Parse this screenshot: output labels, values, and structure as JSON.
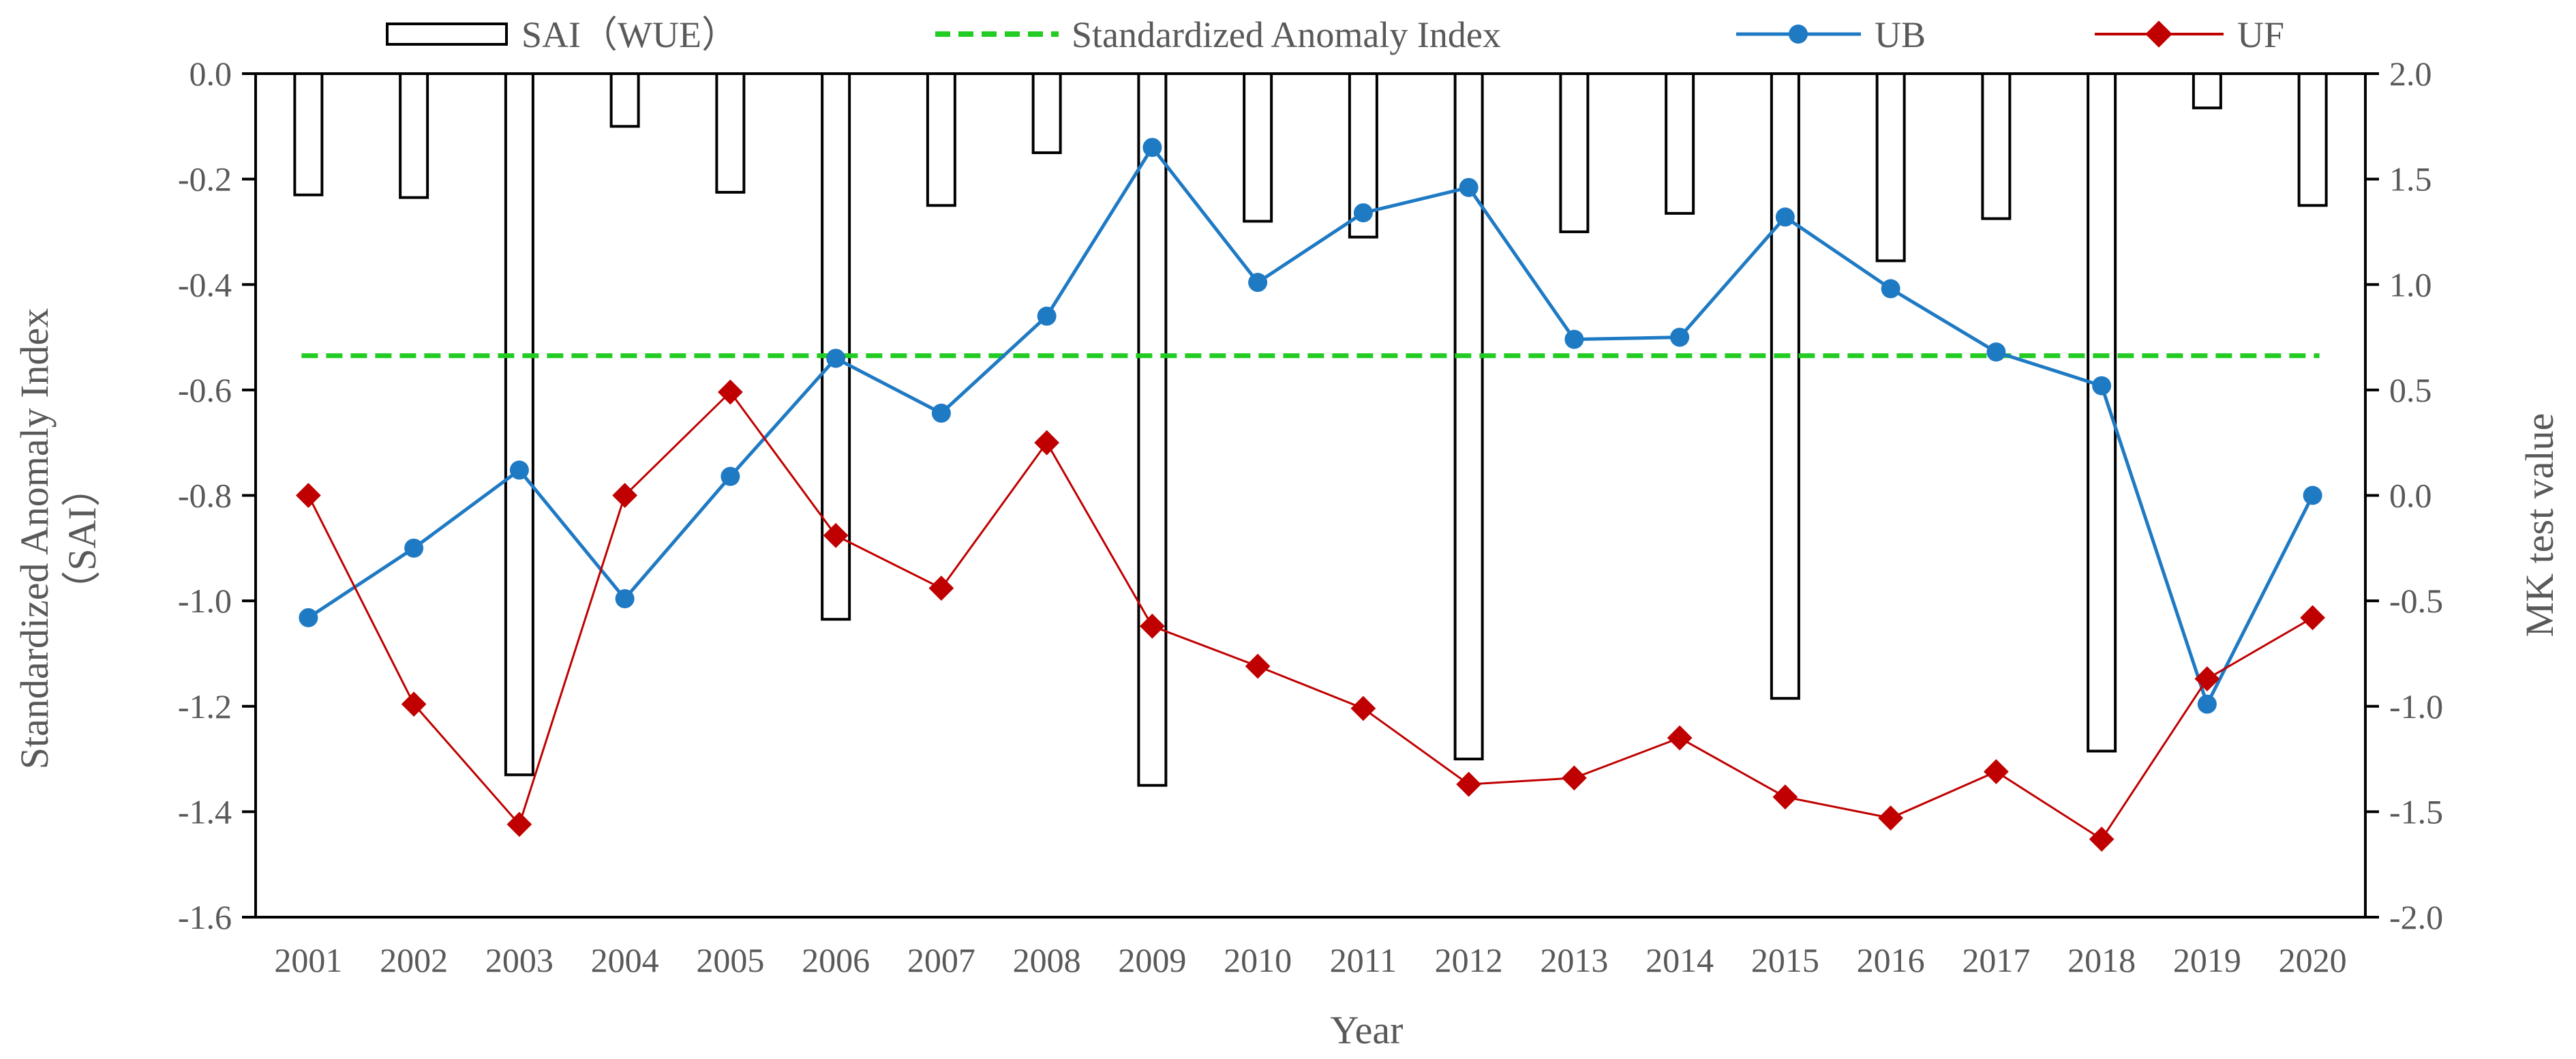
{
  "chart_data": {
    "type": "bar+line",
    "xlabel": "Year",
    "ylabel": "Standardized Anomaly Index",
    "ylabel_line2": "（SAI）",
    "y2label": "MK test value",
    "ylim": [
      -1.6,
      0.0
    ],
    "yticks": [
      "0.0",
      "-0.2",
      "-0.4",
      "-0.6",
      "-0.8",
      "-1.0",
      "-1.2",
      "-1.4",
      "-1.6"
    ],
    "y2lim": [
      -2.0,
      2.0
    ],
    "y2ticks": [
      "2.0",
      "1.5",
      "1.0",
      "0.5",
      "0.0",
      "-0.5",
      "-1.0",
      "-1.5",
      "-2.0"
    ],
    "legend_position": "top",
    "categories": [
      "2001",
      "2002",
      "2003",
      "2004",
      "2005",
      "2006",
      "2007",
      "2008",
      "2009",
      "2010",
      "2011",
      "2012",
      "2013",
      "2014",
      "2015",
      "2016",
      "2017",
      "2018",
      "2019",
      "2020"
    ],
    "bars": {
      "name": "SAI（WUE）",
      "axis": "left",
      "color": "#000000",
      "values": [
        -0.23,
        -0.235,
        -1.33,
        -0.1,
        -0.225,
        -1.035,
        -0.25,
        -0.15,
        -1.35,
        -0.28,
        -0.31,
        -1.3,
        -0.3,
        -0.265,
        -1.185,
        -0.355,
        -0.275,
        -1.285,
        -0.065,
        -0.25
      ]
    },
    "reference_line": {
      "name": "Standardized Anomaly Index",
      "axis": "left",
      "value": -0.535,
      "color": "#22cc22"
    },
    "series": [
      {
        "name": "UB",
        "axis": "right",
        "color": "#1f7ac4",
        "marker": "circle",
        "values": [
          -0.58,
          -0.25,
          0.12,
          -0.49,
          0.09,
          0.65,
          0.39,
          0.85,
          1.65,
          1.01,
          1.34,
          1.46,
          0.74,
          0.75,
          1.32,
          0.98,
          0.68,
          0.52,
          -0.99,
          0.0
        ]
      },
      {
        "name": "UF",
        "axis": "right",
        "color": "#c00000",
        "marker": "diamond",
        "values": [
          0.0,
          -0.99,
          -1.56,
          0.0,
          0.49,
          -0.19,
          -0.44,
          0.25,
          -0.62,
          -0.81,
          -1.01,
          -1.37,
          -1.34,
          -1.15,
          -1.43,
          -1.53,
          -1.31,
          -1.63,
          -0.87,
          -0.58
        ]
      }
    ]
  }
}
